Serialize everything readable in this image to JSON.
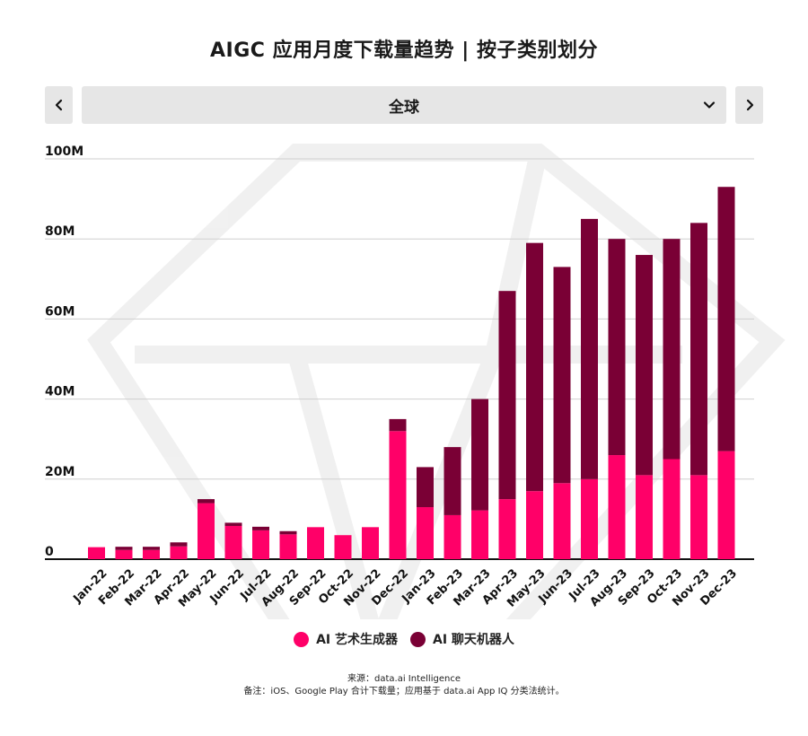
{
  "title": "AIGC 应用月度下载量趋势 | 按子类别划分",
  "region_selector": {
    "value": "全球"
  },
  "chart_data": {
    "type": "bar",
    "stacked": true,
    "categories": [
      "Jan-22",
      "Feb-22",
      "Mar-22",
      "Apr-22",
      "May-22",
      "Jun-22",
      "Jul-22",
      "Aug-22",
      "Sep-22",
      "Oct-22",
      "Nov-22",
      "Dec-22",
      "Jan-23",
      "Feb-23",
      "Mar-23",
      "Apr-23",
      "May-23",
      "Jun-23",
      "Jul-23",
      "Aug-23",
      "Sep-23",
      "Oct-23",
      "Nov-23",
      "Dec-23"
    ],
    "series": [
      {
        "name": "AI 艺术生成器",
        "color": "#ff0068",
        "values": [
          3,
          2.3,
          2.3,
          3.2,
          14,
          8.3,
          7.2,
          6.2,
          8,
          6,
          8,
          32,
          13,
          11,
          12.2,
          15,
          17,
          19,
          20,
          26,
          21,
          25,
          21,
          27
        ]
      },
      {
        "name": "AI 聊天机器人",
        "color": "#7a0035",
        "values": [
          0,
          0.8,
          0.8,
          1,
          1,
          0.8,
          0.9,
          0.8,
          0,
          0,
          0,
          3,
          10,
          17,
          27.8,
          52,
          62,
          54,
          65,
          54,
          55,
          55,
          63,
          66
        ]
      }
    ],
    "y_ticks": [
      "0",
      "20M",
      "40M",
      "60M",
      "80M",
      "100M"
    ],
    "ylim": [
      0,
      100
    ],
    "grid": true
  },
  "footer": {
    "source": "来源：data.ai Intelligence",
    "note": "备注：iOS、Google Play 合计下载量；应用基于 data.ai App IQ 分类法统计。"
  }
}
